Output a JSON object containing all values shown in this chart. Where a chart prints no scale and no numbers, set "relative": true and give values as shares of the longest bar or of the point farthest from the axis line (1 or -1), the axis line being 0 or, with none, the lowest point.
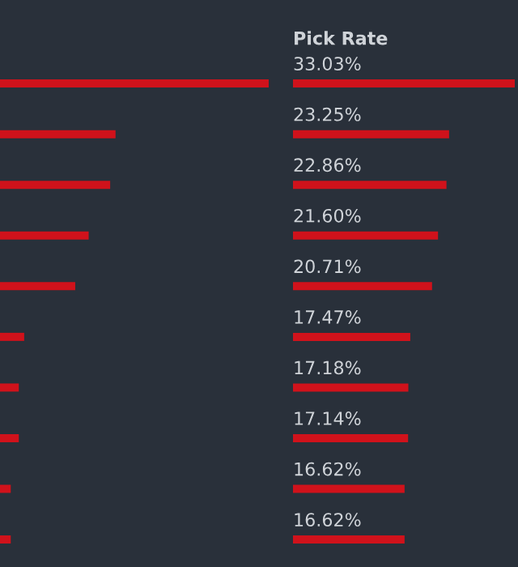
{
  "chart_data": [
    {
      "type": "bar",
      "orientation": "horizontal",
      "relative": true,
      "color": "#d0121b",
      "categories": [
        null,
        null,
        null,
        null,
        null,
        null,
        null,
        null,
        null,
        null
      ],
      "values": [
        1,
        0.43,
        0.41,
        0.33,
        0.28,
        0.09,
        0.07,
        0.07,
        0.04,
        0.04
      ]
    },
    {
      "type": "bar",
      "orientation": "horizontal",
      "title": "Pick Rate",
      "tick_labels": false,
      "color": "#d0121b",
      "categories": [
        null,
        null,
        null,
        null,
        null,
        null,
        null,
        null,
        null,
        null
      ],
      "values": [
        33.03,
        23.25,
        22.86,
        21.6,
        20.71,
        17.47,
        17.18,
        17.14,
        16.62,
        16.62
      ],
      "value_labels": [
        "33.03%",
        "23.25%",
        "22.86%",
        "21.60%",
        "20.71%",
        "17.47%",
        "17.18%",
        "17.14%",
        "16.62%",
        "16.62%"
      ]
    }
  ]
}
